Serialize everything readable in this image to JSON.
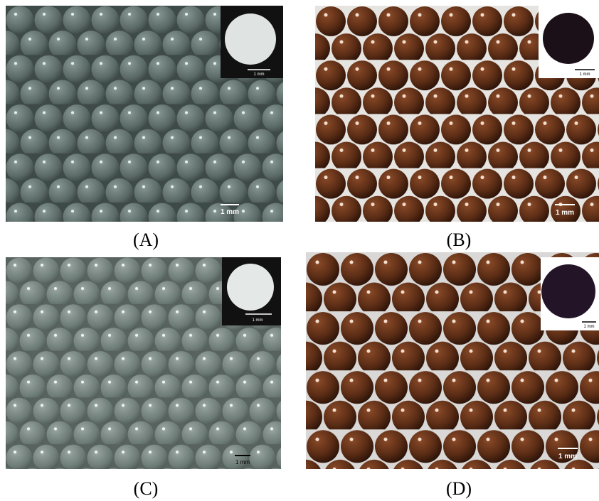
{
  "panels": [
    {
      "label": "(A)",
      "scale_label": "1 mm",
      "inset_scale_label": "1 mm"
    },
    {
      "label": "(B)",
      "scale_label": "1 mm",
      "inset_scale_label": "1 mm"
    },
    {
      "label": "(C)",
      "scale_label": "1 mm",
      "inset_scale_label": "1 mm"
    },
    {
      "label": "(D)",
      "scale_label": "1 mm",
      "inset_scale_label": "1 mm"
    }
  ]
}
